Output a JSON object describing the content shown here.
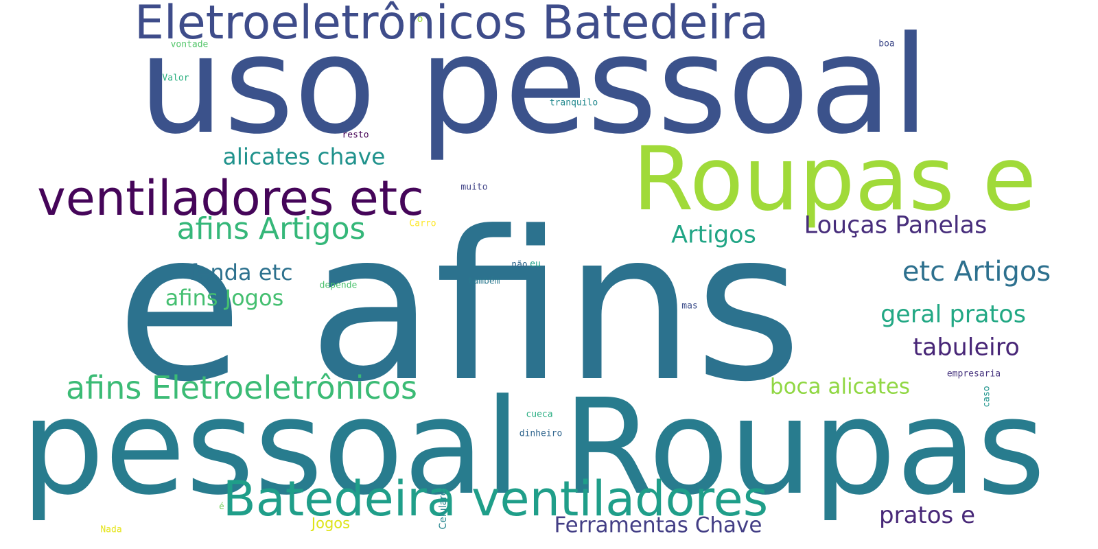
{
  "word_cloud": {
    "words": [
      {
        "id": "uso-pessoal",
        "text": "uso pessoal",
        "color": "#3b528b"
      },
      {
        "id": "e-afins",
        "text": "e afins",
        "color": "#2c728e"
      },
      {
        "id": "pessoal-roupas",
        "text": "pessoal Roupas",
        "color": "#287c8e"
      },
      {
        "id": "roupas-e",
        "text": "Roupas e",
        "color": "#a0da39"
      },
      {
        "id": "eletro-batedeira",
        "text": "Eletroeletrônicos Batedeira",
        "color": "#3e4c8a"
      },
      {
        "id": "ventiladores-etc",
        "text": "ventiladores etc",
        "color": "#450559"
      },
      {
        "id": "batedeira-ventiladores",
        "text": "Batedeira ventiladores",
        "color": "#1f9e89"
      },
      {
        "id": "afins-eletro",
        "text": "afins Eletroeletrônicos",
        "color": "#3bbb75"
      },
      {
        "id": "afins-artigos",
        "text": "afins Artigos",
        "color": "#35b779"
      },
      {
        "id": "alicates-chave",
        "text": "alicates chave",
        "color": "#20928c"
      },
      {
        "id": "loucas-panelas",
        "text": "Louças Panelas",
        "color": "#472d7b"
      },
      {
        "id": "artigos",
        "text": "Artigos",
        "color": "#21a585"
      },
      {
        "id": "etc-artigos",
        "text": "etc Artigos",
        "color": "#2d708e"
      },
      {
        "id": "fenda-etc",
        "text": "fenda etc",
        "color": "#2d718e"
      },
      {
        "id": "afins-jogos",
        "text": "afins Jogos",
        "color": "#44bf70"
      },
      {
        "id": "geral-pratos",
        "text": "geral pratos",
        "color": "#22a884"
      },
      {
        "id": "tabuleiro",
        "text": "tabuleiro",
        "color": "#482677"
      },
      {
        "id": "boca-alicates",
        "text": "boca alicates",
        "color": "#90d743"
      },
      {
        "id": "pratos-e",
        "text": "pratos e",
        "color": "#482878"
      },
      {
        "id": "ferramentas-chave",
        "text": "Ferramentas Chave",
        "color": "#433e85"
      },
      {
        "id": "jogos",
        "text": "Jogos",
        "color": "#dde318"
      },
      {
        "id": "celulares",
        "text": "Celulares",
        "color": "#25858e"
      },
      {
        "id": "nada",
        "text": "Nada",
        "color": "#e5e419"
      },
      {
        "id": "e-accent",
        "text": "é",
        "color": "#70cf57"
      },
      {
        "id": "o",
        "text": "o",
        "color": "#9fda3a"
      },
      {
        "id": "vontade",
        "text": "vontade",
        "color": "#52c569"
      },
      {
        "id": "valor",
        "text": "Valor",
        "color": "#29af7f"
      },
      {
        "id": "boa",
        "text": "boa",
        "color": "#3e4989"
      },
      {
        "id": "tranquilo",
        "text": "tranquilo",
        "color": "#23898e"
      },
      {
        "id": "resto",
        "text": "resto",
        "color": "#440154"
      },
      {
        "id": "muito",
        "text": "muito",
        "color": "#414487"
      },
      {
        "id": "carro",
        "text": "Carro",
        "color": "#fde725"
      },
      {
        "id": "nao",
        "text": "não",
        "color": "#30678d"
      },
      {
        "id": "eu",
        "text": "eu",
        "color": "#1fa088"
      },
      {
        "id": "depende",
        "text": "depende",
        "color": "#4ac16d"
      },
      {
        "id": "tambem",
        "text": "também",
        "color": "#2a788e"
      },
      {
        "id": "mas",
        "text": "mas",
        "color": "#3d4e8a"
      },
      {
        "id": "empresaria",
        "text": "empresaria",
        "color": "#46337e"
      },
      {
        "id": "caso",
        "text": "caso",
        "color": "#1f948c"
      },
      {
        "id": "cueca",
        "text": "cueca",
        "color": "#27ad81"
      },
      {
        "id": "dinheiro",
        "text": "dinheiro",
        "color": "#31668e"
      }
    ]
  }
}
